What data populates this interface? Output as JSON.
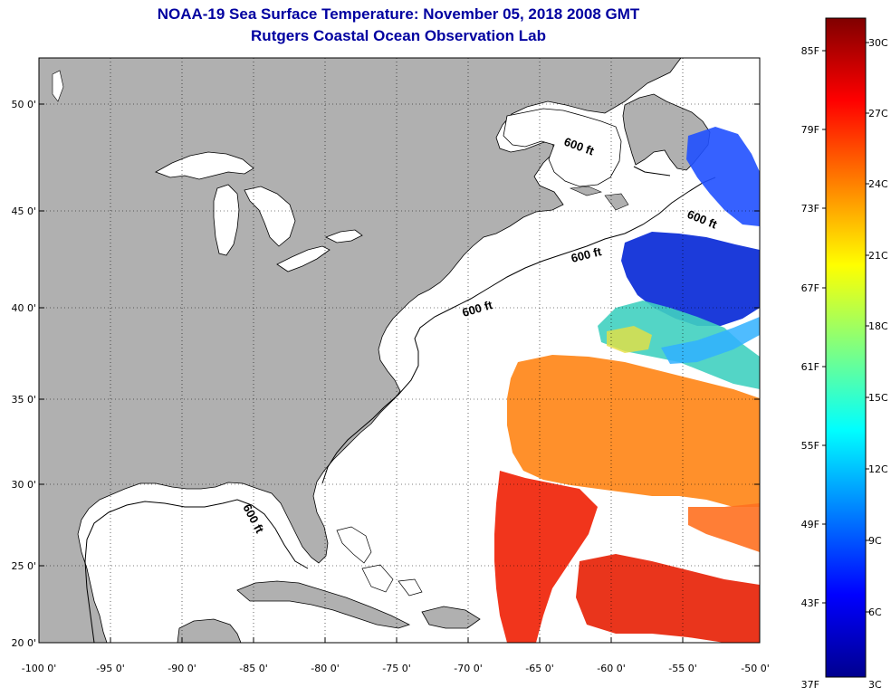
{
  "title": {
    "line1": "NOAA-19 Sea Surface Temperature:  November 05, 2018 2008 GMT",
    "line2": "Rutgers Coastal Ocean Observation Lab"
  },
  "map": {
    "lat_ticks": [
      "50 0'",
      "45 0'",
      "40 0'",
      "35 0'",
      "30 0'",
      "25 0'",
      "20 0'"
    ],
    "lon_ticks": [
      "-100 0'",
      "-95 0'",
      "-90 0'",
      "-85 0'",
      "-80 0'",
      "-75 0'",
      "-70 0'",
      "-65 0'",
      "-60 0'",
      "-55 0'",
      "-50 0'"
    ],
    "contour_label": "600 ft",
    "colors": {
      "land": "#b0b0b0",
      "ocean": "#ffffff"
    }
  },
  "colorbar": {
    "fahrenheit": [
      "85F",
      "79F",
      "73F",
      "67F",
      "61F",
      "55F",
      "49F",
      "43F",
      "37F"
    ],
    "celsius": [
      "30C",
      "27C",
      "24C",
      "21C",
      "18C",
      "15C",
      "12C",
      "9C",
      "6C",
      "3C"
    ]
  }
}
